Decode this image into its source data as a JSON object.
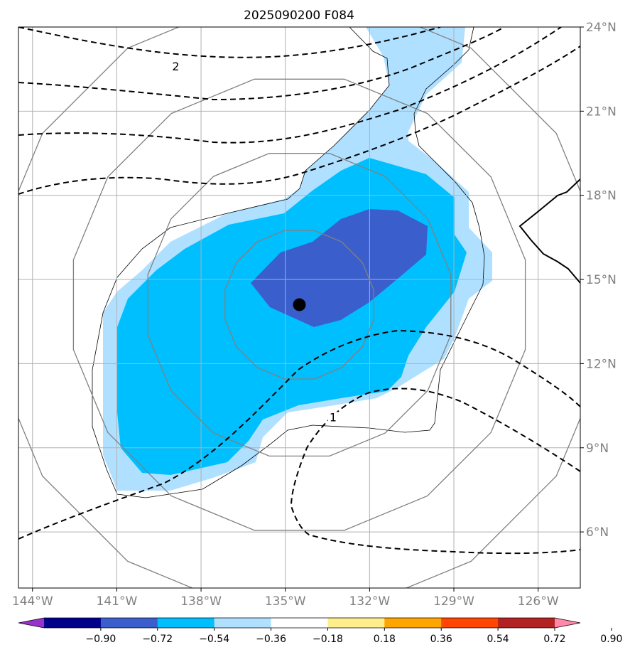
{
  "title": "2025090200 F084",
  "map": {
    "lon_range": [
      -144.5,
      -124.5
    ],
    "lat_range": [
      4.0,
      24.0
    ],
    "x_ticks": [
      {
        "lon": -144,
        "label": "144°W"
      },
      {
        "lon": -141,
        "label": "141°W"
      },
      {
        "lon": -138,
        "label": "138°W"
      },
      {
        "lon": -135,
        "label": "135°W"
      },
      {
        "lon": -132,
        "label": "132°W"
      },
      {
        "lon": -129,
        "label": "129°W"
      },
      {
        "lon": -126,
        "label": "126°W"
      }
    ],
    "y_ticks": [
      {
        "lat": 24,
        "label": "24°N"
      },
      {
        "lat": 21,
        "label": "21°N"
      },
      {
        "lat": 18,
        "label": "18°N"
      },
      {
        "lat": 15,
        "label": "15°N"
      },
      {
        "lat": 12,
        "label": "12°N"
      },
      {
        "lat": 9,
        "label": "9°N"
      },
      {
        "lat": 6,
        "label": "6°N"
      }
    ],
    "grid": true,
    "storm_center": {
      "lon": -134.5,
      "lat": 14.1
    },
    "range_rings_deg": [
      2.7,
      5.5,
      8.2,
      11.0
    ],
    "contour_labels": [
      {
        "text": "2",
        "lon": -138.9,
        "lat": 22.5
      },
      {
        "text": "1",
        "lon": -133.3,
        "lat": 10.0
      }
    ],
    "colors": {
      "pale_blue": "#b0e0ff",
      "deep_sky_blue": "#00bfff",
      "royal_blue": "#3a5fcd",
      "grid": "#b0b0b0",
      "ring": "#808080"
    }
  },
  "colorbar": {
    "colors": [
      "#9932cc",
      "#00008b",
      "#3a5fcd",
      "#00bfff",
      "#b0e0ff",
      "#ffffff",
      "#ffee8c",
      "#ffa500",
      "#ff4500",
      "#b22222",
      "#ff88aa"
    ],
    "labels": [
      "−0.90",
      "−0.72",
      "−0.54",
      "−0.36",
      "−0.18",
      "0.18",
      "0.36",
      "0.54",
      "0.72",
      "0.90"
    ]
  }
}
